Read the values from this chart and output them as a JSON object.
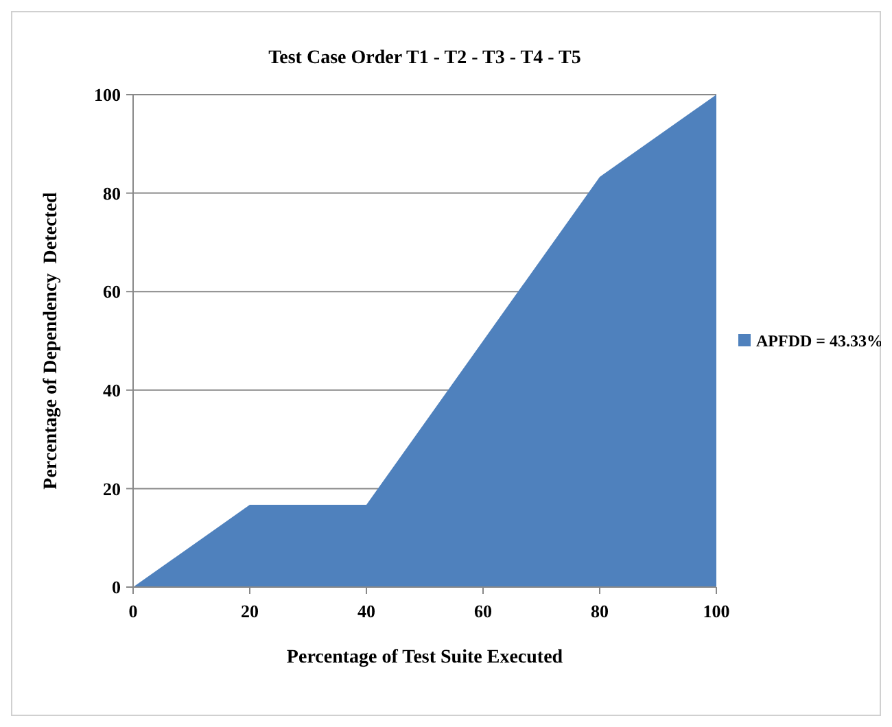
{
  "chart_data": {
    "type": "area",
    "title": "Test Case Order T1 - T2 - T3 - T4 - T5",
    "xlabel": "Percentage of Test Suite Executed",
    "ylabel": "Percentage of Dependency  Detected",
    "x": [
      0,
      20,
      40,
      60,
      80,
      100
    ],
    "series": [
      {
        "name": "APFDD = 43.33%",
        "color": "#4f81bd",
        "values": [
          0,
          16.7,
          16.7,
          50,
          83.3,
          100
        ]
      }
    ],
    "xlim": [
      0,
      100
    ],
    "xticks": [
      0,
      20,
      40,
      60,
      80,
      100
    ],
    "ylim": [
      0,
      100
    ],
    "yticks": [
      0,
      20,
      40,
      60,
      80,
      100
    ],
    "grid": "y",
    "legend": "right"
  }
}
